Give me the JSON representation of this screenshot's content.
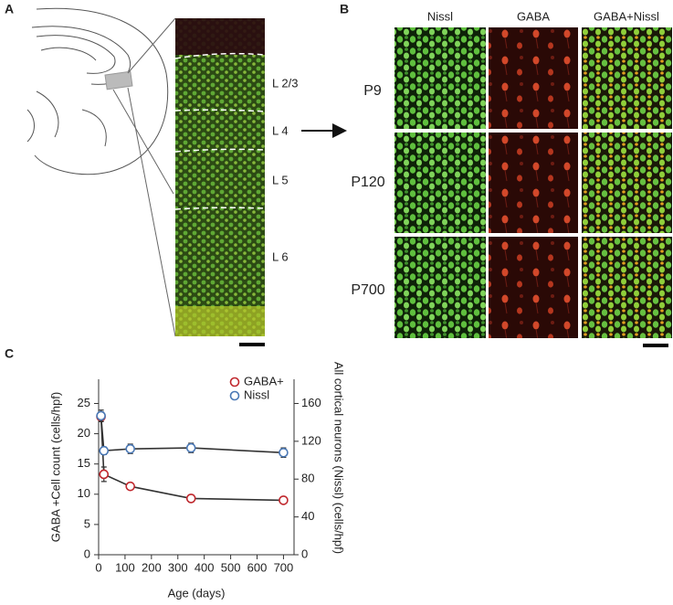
{
  "panels": {
    "a": {
      "label": "A",
      "layers": [
        "L 2/3",
        "L 4",
        "L 5",
        "L 6"
      ]
    },
    "b": {
      "label": "B",
      "columns": [
        "Nissl",
        "GABA",
        "GABA+Nissl"
      ],
      "rows": [
        "P9",
        "P120",
        "P700"
      ]
    },
    "c": {
      "label": "C"
    }
  },
  "chart_data": {
    "type": "line",
    "x": [
      9,
      20,
      120,
      350,
      700
    ],
    "xlim": [
      0,
      740
    ],
    "xticks": [
      0,
      100,
      200,
      300,
      400,
      500,
      600,
      700
    ],
    "ylim": [
      0,
      29
    ],
    "yticks": [
      0,
      5,
      10,
      15,
      20,
      25
    ],
    "y2lim": [
      0,
      185.6
    ],
    "y2ticks": [
      0,
      40,
      80,
      120,
      160
    ],
    "xlabel": "Age (days)",
    "ylabel": "GABA +Cell count (cells/hpf)",
    "y2label": "All cortical neurons (Nissl) (cells/hpf)",
    "legend": "upper right",
    "series": [
      {
        "name": "GABA+",
        "color": "#c0272d",
        "values": [
          22.8,
          13.3,
          11.3,
          9.3,
          9.0
        ],
        "errors": [
          0.8,
          1.2,
          0.5,
          0.6,
          0.5
        ]
      },
      {
        "name": "Nissl",
        "color": "#4a78b5",
        "axis": "y2",
        "values": [
          147,
          110,
          112,
          113,
          108
        ],
        "errors": [
          6,
          4,
          5,
          5,
          5
        ]
      }
    ]
  }
}
